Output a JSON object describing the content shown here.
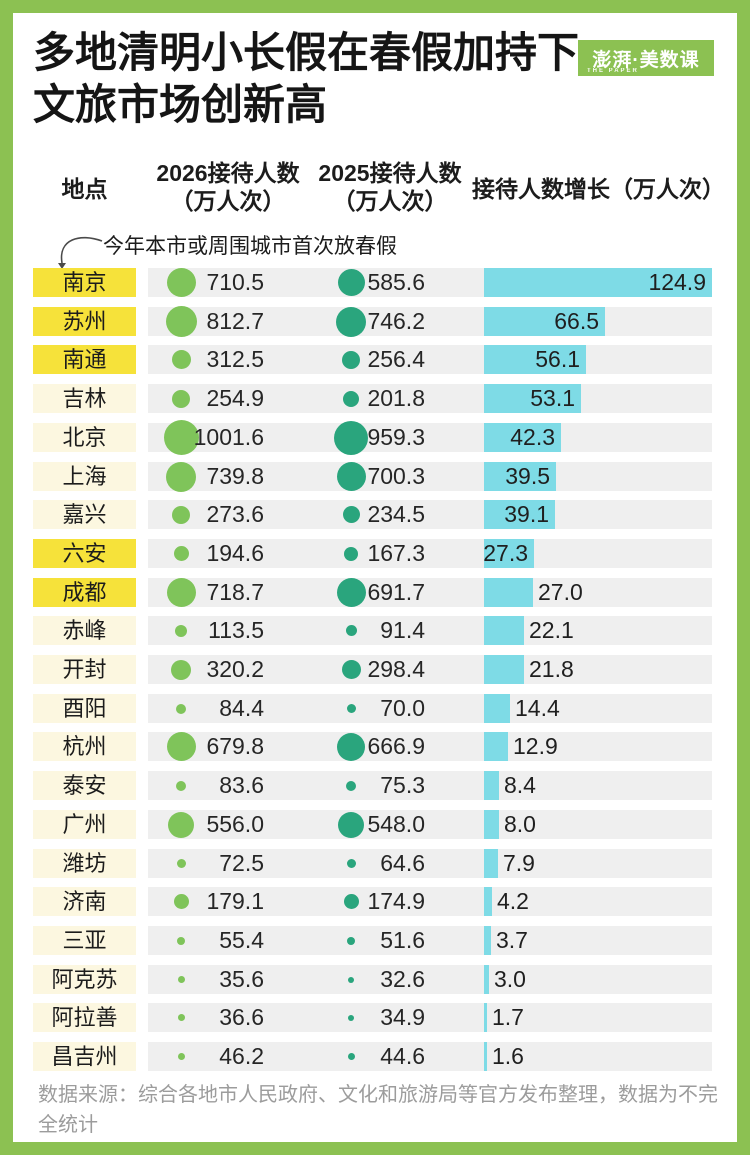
{
  "meta": {
    "title_line1": "多地清明小长假在春假加持下",
    "title_line2": "文旅市场创新高"
  },
  "logo": {
    "text": "澎湃·美数课",
    "subtext": "THE PAPER"
  },
  "colors": {
    "frame_green": "#8CC152",
    "highlight_yellow": "#F6E23A",
    "pale_cream": "#FCF7E0",
    "row_gray": "#EFEFEF",
    "dot_2026_green": "#7FC45A",
    "dot_2025_teal": "#2AA57D",
    "bar_cyan": "#7EDBE6",
    "footer_gray": "#9C9C9C"
  },
  "table": {
    "headers": {
      "place": "地点",
      "col2026_line1": "2026接待人数",
      "col2026_line2": "（万人次）",
      "col2025_line1": "2025接待人数",
      "col2025_line2": "（万人次）",
      "growth": "接待人数增长（万人次）"
    },
    "annotation": "今年本市或周围城市首次放春假",
    "rows": [
      {
        "city": "南京",
        "v2026": "710.5",
        "v2025": "585.6",
        "growth": "124.9",
        "highlight": true,
        "label_inside": true
      },
      {
        "city": "苏州",
        "v2026": "812.7",
        "v2025": "746.2",
        "growth": "66.5",
        "highlight": true,
        "label_inside": true
      },
      {
        "city": "南通",
        "v2026": "312.5",
        "v2025": "256.4",
        "growth": "56.1",
        "highlight": true,
        "label_inside": true
      },
      {
        "city": "吉林",
        "v2026": "254.9",
        "v2025": "201.8",
        "growth": "53.1",
        "highlight": false,
        "label_inside": true
      },
      {
        "city": "北京",
        "v2026": "1001.6",
        "v2025": "959.3",
        "growth": "42.3",
        "highlight": false,
        "label_inside": true
      },
      {
        "city": "上海",
        "v2026": "739.8",
        "v2025": "700.3",
        "growth": "39.5",
        "highlight": false,
        "label_inside": true
      },
      {
        "city": "嘉兴",
        "v2026": "273.6",
        "v2025": "234.5",
        "growth": "39.1",
        "highlight": false,
        "label_inside": true
      },
      {
        "city": "六安",
        "v2026": "194.6",
        "v2025": "167.3",
        "growth": "27.3",
        "highlight": true,
        "label_inside": true
      },
      {
        "city": "成都",
        "v2026": "718.7",
        "v2025": "691.7",
        "growth": "27.0",
        "highlight": true,
        "label_inside": false
      },
      {
        "city": "赤峰",
        "v2026": "113.5",
        "v2025": "91.4",
        "growth": "22.1",
        "highlight": false,
        "label_inside": false
      },
      {
        "city": "开封",
        "v2026": "320.2",
        "v2025": "298.4",
        "growth": "21.8",
        "highlight": false,
        "label_inside": false
      },
      {
        "city": "酉阳",
        "v2026": "84.4",
        "v2025": "70.0",
        "growth": "14.4",
        "highlight": false,
        "label_inside": false
      },
      {
        "city": "杭州",
        "v2026": "679.8",
        "v2025": "666.9",
        "growth": "12.9",
        "highlight": false,
        "label_inside": false
      },
      {
        "city": "泰安",
        "v2026": "83.6",
        "v2025": "75.3",
        "growth": "8.4",
        "highlight": false,
        "label_inside": false
      },
      {
        "city": "广州",
        "v2026": "556.0",
        "v2025": "548.0",
        "growth": "8.0",
        "highlight": false,
        "label_inside": false
      },
      {
        "city": "潍坊",
        "v2026": "72.5",
        "v2025": "64.6",
        "growth": "7.9",
        "highlight": false,
        "label_inside": false
      },
      {
        "city": "济南",
        "v2026": "179.1",
        "v2025": "174.9",
        "growth": "4.2",
        "highlight": false,
        "label_inside": false
      },
      {
        "city": "三亚",
        "v2026": "55.4",
        "v2025": "51.6",
        "growth": "3.7",
        "highlight": false,
        "label_inside": false
      },
      {
        "city": "阿克苏",
        "v2026": "35.6",
        "v2025": "32.6",
        "growth": "3.0",
        "highlight": false,
        "label_inside": false
      },
      {
        "city": "阿拉善",
        "v2026": "36.6",
        "v2025": "34.9",
        "growth": "1.7",
        "highlight": false,
        "label_inside": false
      },
      {
        "city": "昌吉州",
        "v2026": "46.2",
        "v2025": "44.6",
        "growth": "1.6",
        "highlight": false,
        "label_inside": false
      }
    ]
  },
  "footer": {
    "source_line1": "数据来源：综合各地市人民政府、文化和旅游局等官方发布整理，数据为不完",
    "source_line2": "全统计"
  },
  "chart_data": {
    "type": "table",
    "title": "多地清明小长假在春假加持下文旅市场创新高",
    "categories": [
      "南京",
      "苏州",
      "南通",
      "吉林",
      "北京",
      "上海",
      "嘉兴",
      "六安",
      "成都",
      "赤峰",
      "开封",
      "酉阳",
      "杭州",
      "泰安",
      "广州",
      "潍坊",
      "济南",
      "三亚",
      "阿克苏",
      "阿拉善",
      "昌吉州"
    ],
    "series": [
      {
        "name": "2026接待人数（万人次）",
        "values": [
          710.5,
          812.7,
          312.5,
          254.9,
          1001.6,
          739.8,
          273.6,
          194.6,
          718.7,
          113.5,
          320.2,
          84.4,
          679.8,
          83.6,
          556.0,
          72.5,
          179.1,
          55.4,
          35.6,
          36.6,
          46.2
        ]
      },
      {
        "name": "2025接待人数（万人次）",
        "values": [
          585.6,
          746.2,
          256.4,
          201.8,
          959.3,
          700.3,
          234.5,
          167.3,
          691.7,
          91.4,
          298.4,
          70.0,
          666.9,
          75.3,
          548.0,
          64.6,
          174.9,
          51.6,
          32.6,
          34.9,
          44.6
        ]
      },
      {
        "name": "接待人数增长（万人次）",
        "values": [
          124.9,
          66.5,
          56.1,
          53.1,
          42.3,
          39.5,
          39.1,
          27.3,
          27.0,
          22.1,
          21.8,
          14.4,
          12.9,
          8.4,
          8.0,
          7.9,
          4.2,
          3.7,
          3.0,
          1.7,
          1.6
        ]
      }
    ],
    "annotation": "今年本市或周围城市首次放春假",
    "annotated_categories": [
      "南京",
      "苏州",
      "南通",
      "六安",
      "成都"
    ],
    "legend_position": "none",
    "grid": false
  }
}
